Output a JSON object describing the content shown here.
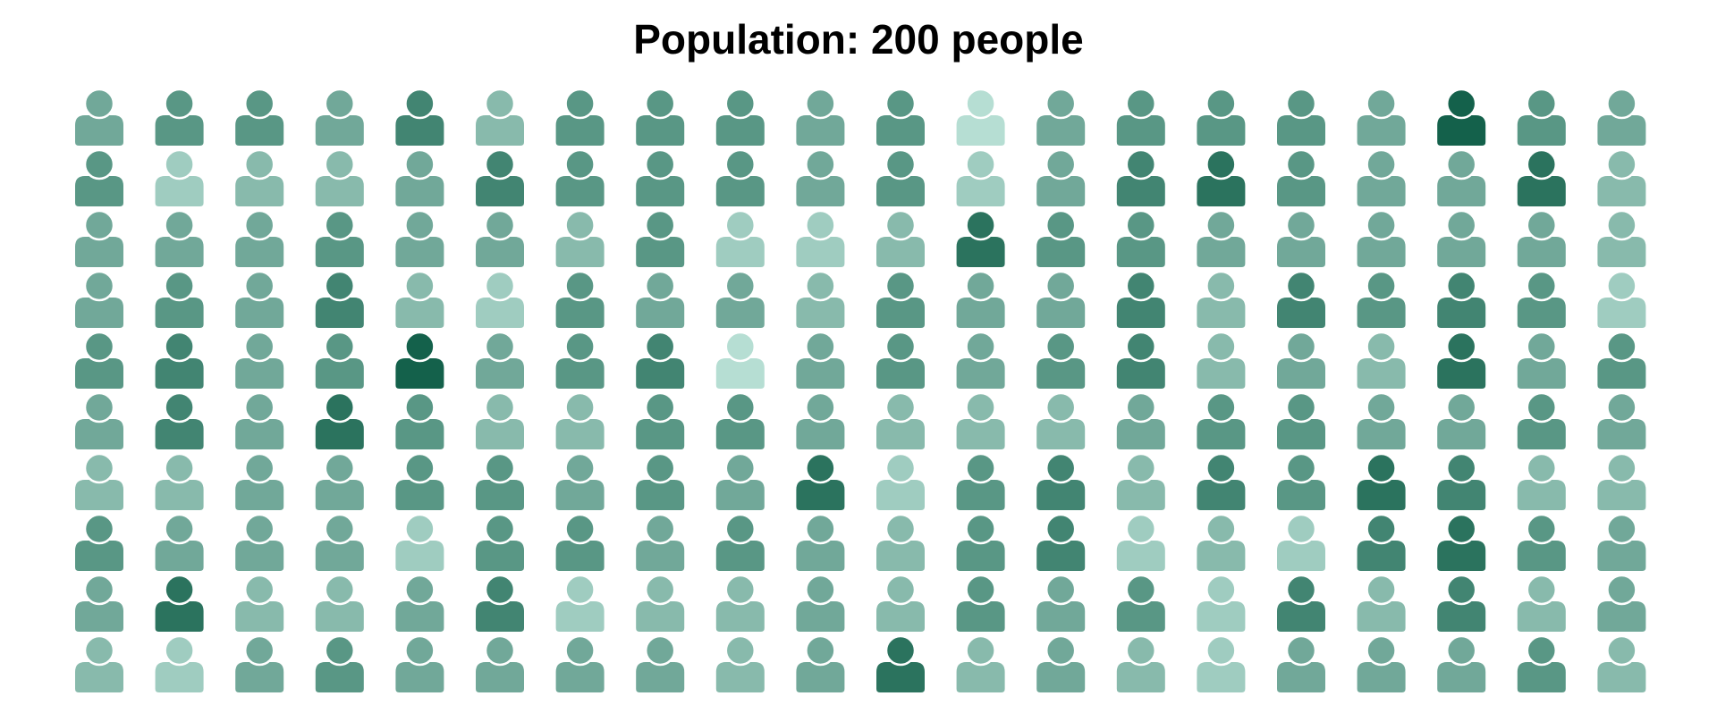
{
  "chart_data": {
    "type": "pictogram",
    "title": "Population: 200 people",
    "total": 200,
    "rows": 10,
    "cols": 20,
    "icon": "person-icon",
    "color_light": "#b6ded3",
    "color_dark": "#14614b",
    "shade_grid": [
      [
        3,
        4,
        4,
        3,
        5,
        2,
        4,
        4,
        4,
        3,
        4,
        0,
        3,
        4,
        4,
        4,
        3,
        7,
        4,
        3
      ],
      [
        4,
        1,
        2,
        2,
        3,
        5,
        4,
        4,
        4,
        3,
        4,
        1,
        3,
        5,
        6,
        4,
        3,
        3,
        6,
        2
      ],
      [
        3,
        3,
        3,
        4,
        3,
        3,
        2,
        4,
        1,
        1,
        2,
        6,
        4,
        4,
        3,
        3,
        3,
        3,
        3,
        2
      ],
      [
        3,
        4,
        3,
        5,
        2,
        1,
        4,
        3,
        3,
        2,
        4,
        3,
        3,
        5,
        2,
        5,
        4,
        5,
        4,
        1
      ],
      [
        4,
        5,
        3,
        4,
        7,
        3,
        4,
        5,
        0,
        3,
        4,
        3,
        4,
        5,
        2,
        3,
        2,
        6,
        3,
        4
      ],
      [
        3,
        5,
        3,
        6,
        4,
        2,
        2,
        4,
        4,
        3,
        2,
        2,
        2,
        3,
        4,
        4,
        3,
        3,
        4,
        3
      ],
      [
        2,
        2,
        3,
        3,
        4,
        4,
        3,
        4,
        3,
        6,
        1,
        4,
        5,
        2,
        5,
        4,
        6,
        5,
        2,
        2
      ],
      [
        4,
        3,
        3,
        3,
        1,
        4,
        4,
        3,
        4,
        3,
        2,
        4,
        5,
        1,
        2,
        1,
        5,
        6,
        4,
        3
      ],
      [
        3,
        6,
        2,
        2,
        3,
        5,
        1,
        2,
        2,
        3,
        2,
        4,
        3,
        4,
        1,
        5,
        2,
        5,
        2,
        3
      ],
      [
        2,
        1,
        3,
        4,
        3,
        3,
        3,
        3,
        2,
        3,
        6,
        2,
        3,
        2,
        1,
        3,
        3,
        3,
        4,
        2
      ]
    ]
  }
}
